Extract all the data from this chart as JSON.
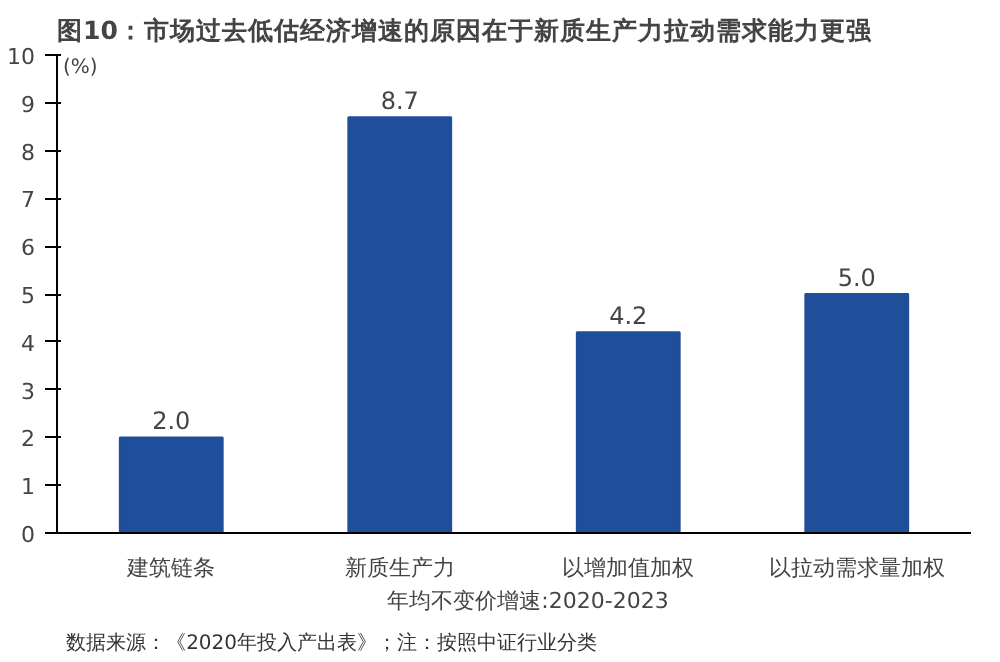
{
  "chart_data": {
    "type": "bar",
    "title": "图10：市场过去低估经济增速的原因在于新质生产力拉动需求能力更强",
    "ylabel": "(%)",
    "categories": [
      "建筑链条",
      "新质生产力",
      "以增加值加权",
      "以拉动需求量加权"
    ],
    "series": [
      {
        "name": "年均不变价增速:2020-2023",
        "color": "#1f4e9a",
        "values": [
          2.0,
          8.7,
          4.2,
          5.0
        ]
      }
    ],
    "value_labels": [
      "2.0",
      "8.7",
      "4.2",
      "5.0"
    ],
    "ylim": [
      0,
      10
    ],
    "yticks": [
      0,
      1,
      2,
      3,
      4,
      5,
      6,
      7,
      8,
      9,
      10
    ],
    "grid": false,
    "legend": "bottom",
    "annotations": [
      "数据来源：《2020年投入产出表》；注：按照中证行业分类"
    ]
  }
}
